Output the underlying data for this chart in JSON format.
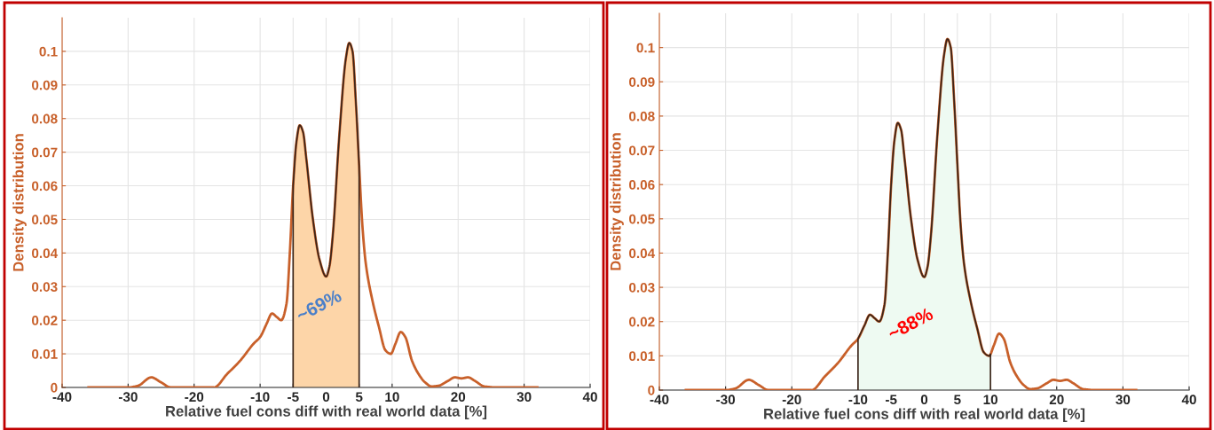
{
  "chart_data": [
    {
      "type": "line",
      "xlabel": "Relative fuel cons diff with real world data [%]",
      "ylabel": "Density distribution",
      "x": [
        -36,
        -30,
        -28.5,
        -26.5,
        -25,
        -23.5,
        -20,
        -17,
        -15,
        -13,
        -11,
        -10,
        -9,
        -8.2,
        -7.5,
        -6.8,
        -6,
        -5.5,
        -5,
        -4.5,
        -4,
        -3.5,
        -3,
        -2,
        -1,
        0,
        0.5,
        1,
        2,
        3,
        3.5,
        4,
        4.5,
        5,
        5.5,
        6,
        7,
        8,
        9,
        9.8,
        10.5,
        11.3,
        12,
        13,
        14,
        15,
        16,
        17,
        18.5,
        19.5,
        20.5,
        21.5,
        22.5,
        24,
        26,
        32
      ],
      "series": [
        {
          "color": "#c8602a",
          "values": [
            0,
            0,
            0.0005,
            0.003,
            0.0015,
            0,
            0,
            0,
            0.004,
            0.008,
            0.013,
            0.015,
            0.019,
            0.022,
            0.021,
            0.02,
            0.025,
            0.04,
            0.06,
            0.073,
            0.078,
            0.076,
            0.068,
            0.05,
            0.038,
            0.033,
            0.036,
            0.045,
            0.075,
            0.098,
            0.1025,
            0.1,
            0.085,
            0.066,
            0.048,
            0.037,
            0.026,
            0.018,
            0.011,
            0.01,
            0.013,
            0.0165,
            0.015,
            0.008,
            0.004,
            0.0015,
            0.0003,
            0.0005,
            0.002,
            0.003,
            0.0027,
            0.003,
            0.002,
            0.0003,
            0,
            0
          ]
        },
        {
          "type": "area",
          "color": "#fdd5a8",
          "x": [
            -5,
            -4.5,
            -4,
            -3.5,
            -3,
            -2,
            -1,
            0,
            0.5,
            1,
            2,
            3,
            3.5,
            4,
            4.5,
            5
          ],
          "values": [
            0.06,
            0.073,
            0.078,
            0.076,
            0.068,
            0.05,
            0.038,
            0.033,
            0.036,
            0.045,
            0.075,
            0.098,
            0.1025,
            0.1,
            0.085,
            0.066
          ]
        }
      ],
      "annotations": [
        "~69%"
      ],
      "xlim": [
        -40,
        40
      ],
      "xticks": [
        -40,
        -30,
        -20,
        -10,
        -5,
        0,
        5,
        10,
        20,
        30,
        40
      ],
      "ylim": [
        0,
        0.11
      ],
      "yticks": [
        0,
        0.01,
        0.02,
        0.03,
        0.04,
        0.05,
        0.06,
        0.07,
        0.08,
        0.09,
        0.1
      ],
      "grid": true
    },
    {
      "type": "line",
      "xlabel": "Relative fuel cons diff with real world data [%]",
      "ylabel": "Density distribution",
      "x": [
        -36,
        -30,
        -28.5,
        -26.5,
        -25,
        -23.5,
        -20,
        -17,
        -15,
        -13,
        -11,
        -10,
        -9,
        -8.2,
        -7.5,
        -6.8,
        -6,
        -5.5,
        -5,
        -4.5,
        -4,
        -3.5,
        -3,
        -2,
        -1,
        0,
        0.5,
        1,
        2,
        3,
        3.5,
        4,
        4.5,
        5,
        5.5,
        6,
        7,
        8,
        9,
        9.8,
        10.5,
        11.3,
        12,
        13,
        14,
        15,
        16,
        17,
        18.5,
        19.5,
        20.5,
        21.5,
        22.5,
        24,
        26,
        32
      ],
      "series": [
        {
          "color": "#c8602a",
          "values": [
            0,
            0,
            0.0005,
            0.003,
            0.0015,
            0,
            0,
            0,
            0.004,
            0.008,
            0.013,
            0.015,
            0.019,
            0.022,
            0.021,
            0.02,
            0.025,
            0.04,
            0.06,
            0.073,
            0.078,
            0.076,
            0.068,
            0.05,
            0.038,
            0.033,
            0.036,
            0.045,
            0.075,
            0.098,
            0.1025,
            0.1,
            0.085,
            0.066,
            0.048,
            0.037,
            0.026,
            0.018,
            0.011,
            0.01,
            0.013,
            0.0165,
            0.015,
            0.008,
            0.004,
            0.0015,
            0.0003,
            0.0005,
            0.002,
            0.003,
            0.0027,
            0.003,
            0.002,
            0.0003,
            0,
            0
          ]
        },
        {
          "type": "area",
          "color": "#eefaf2",
          "x": [
            -10,
            -9,
            -8.2,
            -7.5,
            -6.8,
            -6,
            -5.5,
            -5,
            -4.5,
            -4,
            -3.5,
            -3,
            -2,
            -1,
            0,
            0.5,
            1,
            2,
            3,
            3.5,
            4,
            4.5,
            5,
            5.5,
            6,
            7,
            8,
            9,
            9.8,
            10
          ],
          "values": [
            0.015,
            0.019,
            0.022,
            0.021,
            0.02,
            0.025,
            0.04,
            0.06,
            0.073,
            0.078,
            0.076,
            0.068,
            0.05,
            0.038,
            0.033,
            0.036,
            0.045,
            0.075,
            0.098,
            0.1025,
            0.1,
            0.085,
            0.066,
            0.048,
            0.037,
            0.026,
            0.018,
            0.011,
            0.01,
            0.0105
          ]
        }
      ],
      "annotations": [
        "~88%"
      ],
      "xlim": [
        -40,
        40
      ],
      "xticks": [
        -40,
        -30,
        -20,
        -10,
        -5,
        0,
        5,
        10,
        20,
        30,
        40
      ],
      "ylim": [
        0,
        0.11
      ],
      "yticks": [
        0,
        0.01,
        0.02,
        0.03,
        0.04,
        0.05,
        0.06,
        0.07,
        0.08,
        0.09,
        0.1
      ],
      "grid": true
    }
  ]
}
